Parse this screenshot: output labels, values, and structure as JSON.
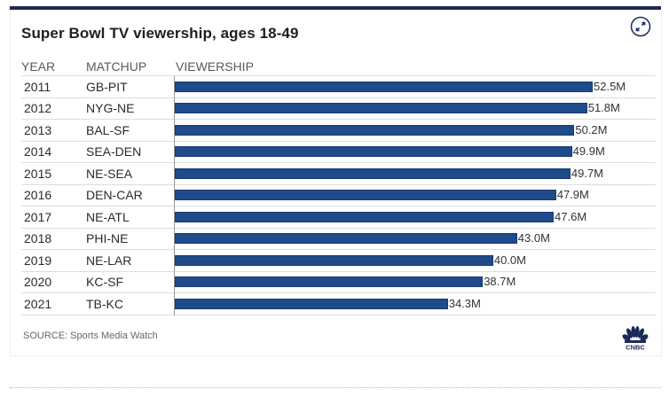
{
  "header": {
    "title": "Super Bowl TV viewership, ages 18-49",
    "expand_icon": "expand-arrows-icon"
  },
  "columns": {
    "year": "YEAR",
    "matchup": "MATCHUP",
    "viewership": "VIEWERSHIP"
  },
  "footer": {
    "source": "SOURCE: Sports Media Watch",
    "logo": "CNBC",
    "logo_icon": "cnbc-peacock-icon"
  },
  "colors": {
    "bar": "#1f4b8a",
    "accent": "#1b2a56"
  },
  "chart_data": {
    "type": "bar",
    "orientation": "horizontal",
    "title": "Super Bowl TV viewership, ages 18-49",
    "xlabel": "VIEWERSHIP",
    "ylabel": "YEAR",
    "categories": [
      "2011",
      "2012",
      "2013",
      "2014",
      "2015",
      "2016",
      "2017",
      "2018",
      "2019",
      "2020",
      "2021"
    ],
    "matchups": [
      "GB-PIT",
      "NYG-NE",
      "BAL-SF",
      "SEA-DEN",
      "NE-SEA",
      "DEN-CAR",
      "NE-ATL",
      "PHI-NE",
      "NE-LAR",
      "KC-SF",
      "TB-KC"
    ],
    "values": [
      52.5,
      51.8,
      50.2,
      49.9,
      49.7,
      47.9,
      47.6,
      43.0,
      40.0,
      38.7,
      34.3
    ],
    "labels": [
      "52.5M",
      "51.8M",
      "50.2M",
      "49.9M",
      "49.7M",
      "47.9M",
      "47.6M",
      "43.0M",
      "40.0M",
      "38.7M",
      "34.3M"
    ],
    "unit": "millions of viewers",
    "xlim": [
      0,
      52.5
    ],
    "grid": false,
    "legend": "none",
    "source": "SOURCE: Sports Media Watch"
  }
}
